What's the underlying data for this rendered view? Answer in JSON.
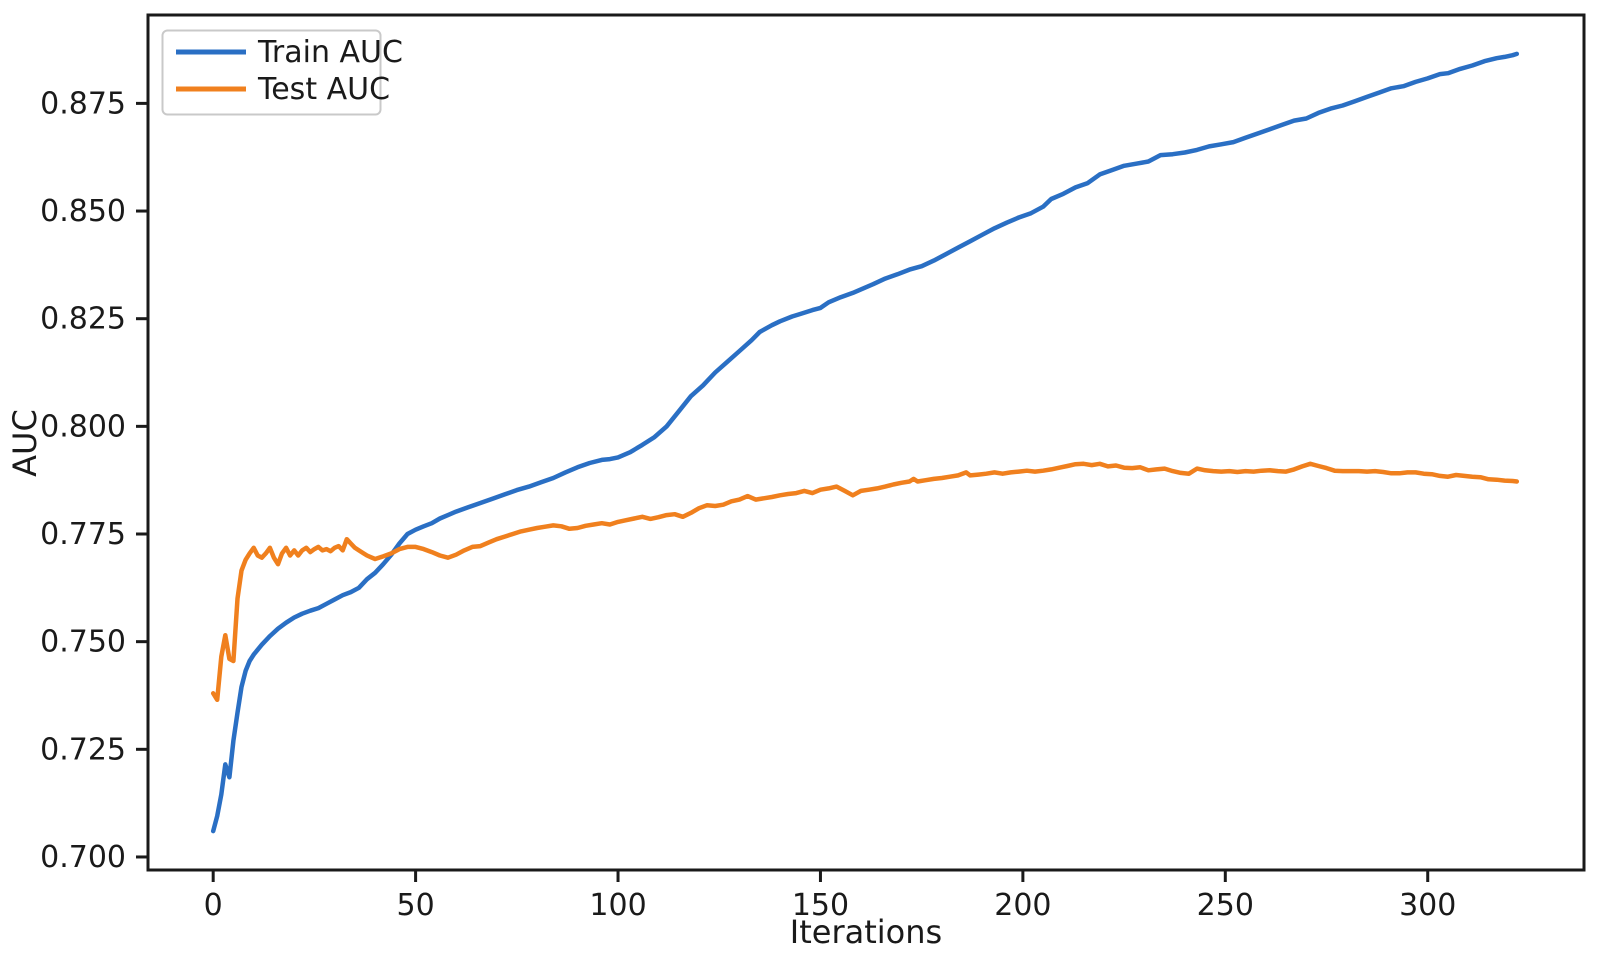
{
  "chart_data": {
    "type": "line",
    "title": "",
    "xlabel": "Iterations",
    "ylabel": "AUC",
    "grid": false,
    "background": "#ffffff",
    "axis_color": "#1a1a1a",
    "xlim": [
      -16.1,
      338.6
    ],
    "ylim": [
      0.696975,
      0.895525
    ],
    "x_ticks": [
      0,
      50,
      100,
      150,
      200,
      250,
      300
    ],
    "x_tick_labels": [
      "0",
      "50",
      "100",
      "150",
      "200",
      "250",
      "300"
    ],
    "y_ticks": [
      0.7,
      0.725,
      0.75,
      0.775,
      0.8,
      0.825,
      0.85,
      0.875
    ],
    "y_tick_labels": [
      "0.700",
      "0.725",
      "0.750",
      "0.775",
      "0.800",
      "0.825",
      "0.850",
      "0.875"
    ],
    "legend": {
      "position": "upper-left"
    },
    "series": [
      {
        "name": "Train AUC",
        "color": "#2a6fc4",
        "points": [
          [
            0,
            0.706
          ],
          [
            1,
            0.7095
          ],
          [
            2,
            0.7145
          ],
          [
            3,
            0.7215
          ],
          [
            4,
            0.7185
          ],
          [
            5,
            0.727
          ],
          [
            6,
            0.7335
          ],
          [
            7,
            0.7395
          ],
          [
            8,
            0.7432
          ],
          [
            9,
            0.7455
          ],
          [
            10,
            0.747
          ],
          [
            12,
            0.7493
          ],
          [
            14,
            0.7513
          ],
          [
            16,
            0.753
          ],
          [
            18,
            0.7544
          ],
          [
            20,
            0.7556
          ],
          [
            22,
            0.7565
          ],
          [
            24,
            0.7572
          ],
          [
            26,
            0.7578
          ],
          [
            28,
            0.7588
          ],
          [
            30,
            0.7598
          ],
          [
            32,
            0.7608
          ],
          [
            34,
            0.7615
          ],
          [
            36,
            0.7625
          ],
          [
            38,
            0.7645
          ],
          [
            40,
            0.766
          ],
          [
            42,
            0.768
          ],
          [
            44,
            0.7702
          ],
          [
            46,
            0.7728
          ],
          [
            48,
            0.775
          ],
          [
            50,
            0.776
          ],
          [
            52,
            0.7768
          ],
          [
            54,
            0.7775
          ],
          [
            56,
            0.7786
          ],
          [
            58,
            0.7794
          ],
          [
            60,
            0.7802
          ],
          [
            63,
            0.7812
          ],
          [
            66,
            0.7822
          ],
          [
            69,
            0.7832
          ],
          [
            72,
            0.7842
          ],
          [
            75,
            0.7852
          ],
          [
            78,
            0.786
          ],
          [
            81,
            0.787
          ],
          [
            84,
            0.788
          ],
          [
            87,
            0.7893
          ],
          [
            90,
            0.7905
          ],
          [
            93,
            0.7915
          ],
          [
            96,
            0.7922
          ],
          [
            98,
            0.7924
          ],
          [
            100,
            0.7928
          ],
          [
            103,
            0.794
          ],
          [
            106,
            0.7957
          ],
          [
            109,
            0.7975
          ],
          [
            112,
            0.8
          ],
          [
            115,
            0.8035
          ],
          [
            118,
            0.807
          ],
          [
            121,
            0.8095
          ],
          [
            124,
            0.8125
          ],
          [
            127,
            0.815
          ],
          [
            130,
            0.8175
          ],
          [
            133,
            0.82
          ],
          [
            135,
            0.8219
          ],
          [
            138,
            0.8235
          ],
          [
            140,
            0.8244
          ],
          [
            143,
            0.8255
          ],
          [
            145,
            0.8261
          ],
          [
            148,
            0.827
          ],
          [
            150,
            0.8275
          ],
          [
            152,
            0.8288
          ],
          [
            155,
            0.83
          ],
          [
            158,
            0.831
          ],
          [
            160,
            0.8318
          ],
          [
            163,
            0.833
          ],
          [
            166,
            0.8343
          ],
          [
            169,
            0.8353
          ],
          [
            172,
            0.8364
          ],
          [
            175,
            0.8372
          ],
          [
            178,
            0.8385
          ],
          [
            181,
            0.84
          ],
          [
            184,
            0.8415
          ],
          [
            187,
            0.843
          ],
          [
            190,
            0.8445
          ],
          [
            193,
            0.846
          ],
          [
            196,
            0.8473
          ],
          [
            199,
            0.8485
          ],
          [
            202,
            0.8495
          ],
          [
            205,
            0.851
          ],
          [
            207,
            0.8528
          ],
          [
            210,
            0.854
          ],
          [
            213,
            0.8555
          ],
          [
            216,
            0.8565
          ],
          [
            219,
            0.8585
          ],
          [
            222,
            0.8595
          ],
          [
            225,
            0.8605
          ],
          [
            228,
            0.861
          ],
          [
            231,
            0.8615
          ],
          [
            234,
            0.863
          ],
          [
            237,
            0.8632
          ],
          [
            240,
            0.8636
          ],
          [
            243,
            0.8642
          ],
          [
            246,
            0.865
          ],
          [
            249,
            0.8655
          ],
          [
            252,
            0.866
          ],
          [
            255,
            0.867
          ],
          [
            258,
            0.868
          ],
          [
            261,
            0.869
          ],
          [
            264,
            0.87
          ],
          [
            267,
            0.871
          ],
          [
            270,
            0.8715
          ],
          [
            273,
            0.8728
          ],
          [
            276,
            0.8738
          ],
          [
            279,
            0.8745
          ],
          [
            282,
            0.8755
          ],
          [
            285,
            0.8765
          ],
          [
            288,
            0.8775
          ],
          [
            291,
            0.8785
          ],
          [
            294,
            0.879
          ],
          [
            297,
            0.88
          ],
          [
            300,
            0.8808
          ],
          [
            303,
            0.8818
          ],
          [
            305,
            0.882
          ],
          [
            308,
            0.883
          ],
          [
            311,
            0.8838
          ],
          [
            314,
            0.8848
          ],
          [
            317,
            0.8855
          ],
          [
            319,
            0.8858
          ],
          [
            321,
            0.8862
          ],
          [
            322,
            0.8865
          ]
        ]
      },
      {
        "name": "Test AUC",
        "color": "#f0801e",
        "points": [
          [
            0,
            0.738
          ],
          [
            1,
            0.7365
          ],
          [
            2,
            0.7465
          ],
          [
            3,
            0.7515
          ],
          [
            4,
            0.746
          ],
          [
            5,
            0.7455
          ],
          [
            6,
            0.76
          ],
          [
            7,
            0.7665
          ],
          [
            8,
            0.769
          ],
          [
            9,
            0.7705
          ],
          [
            10,
            0.7718
          ],
          [
            11,
            0.77
          ],
          [
            12,
            0.7695
          ],
          [
            13,
            0.7705
          ],
          [
            14,
            0.7718
          ],
          [
            15,
            0.7695
          ],
          [
            16,
            0.768
          ],
          [
            17,
            0.7705
          ],
          [
            18,
            0.7718
          ],
          [
            19,
            0.77
          ],
          [
            20,
            0.7712
          ],
          [
            21,
            0.77
          ],
          [
            22,
            0.7712
          ],
          [
            23,
            0.7718
          ],
          [
            24,
            0.7708
          ],
          [
            25,
            0.7715
          ],
          [
            26,
            0.772
          ],
          [
            27,
            0.7712
          ],
          [
            28,
            0.7715
          ],
          [
            29,
            0.771
          ],
          [
            30,
            0.7718
          ],
          [
            31,
            0.7722
          ],
          [
            32,
            0.7712
          ],
          [
            33,
            0.7738
          ],
          [
            34,
            0.7728
          ],
          [
            35,
            0.7718
          ],
          [
            36,
            0.7712
          ],
          [
            37,
            0.7706
          ],
          [
            38,
            0.77
          ],
          [
            39,
            0.7696
          ],
          [
            40,
            0.7692
          ],
          [
            42,
            0.7698
          ],
          [
            44,
            0.7705
          ],
          [
            46,
            0.7715
          ],
          [
            48,
            0.772
          ],
          [
            50,
            0.772
          ],
          [
            52,
            0.7715
          ],
          [
            54,
            0.7708
          ],
          [
            56,
            0.77
          ],
          [
            58,
            0.7695
          ],
          [
            60,
            0.7702
          ],
          [
            62,
            0.7712
          ],
          [
            64,
            0.772
          ],
          [
            66,
            0.7722
          ],
          [
            68,
            0.773
          ],
          [
            70,
            0.7738
          ],
          [
            72,
            0.7744
          ],
          [
            74,
            0.775
          ],
          [
            76,
            0.7756
          ],
          [
            78,
            0.776
          ],
          [
            80,
            0.7764
          ],
          [
            82,
            0.7767
          ],
          [
            84,
            0.777
          ],
          [
            86,
            0.7768
          ],
          [
            88,
            0.7762
          ],
          [
            90,
            0.7764
          ],
          [
            92,
            0.7769
          ],
          [
            94,
            0.7772
          ],
          [
            96,
            0.7775
          ],
          [
            98,
            0.7772
          ],
          [
            100,
            0.7778
          ],
          [
            102,
            0.7782
          ],
          [
            104,
            0.7786
          ],
          [
            106,
            0.779
          ],
          [
            108,
            0.7785
          ],
          [
            110,
            0.7789
          ],
          [
            112,
            0.7794
          ],
          [
            114,
            0.7796
          ],
          [
            116,
            0.779
          ],
          [
            118,
            0.7799
          ],
          [
            120,
            0.781
          ],
          [
            122,
            0.7817
          ],
          [
            124,
            0.7815
          ],
          [
            126,
            0.7818
          ],
          [
            128,
            0.7826
          ],
          [
            130,
            0.783
          ],
          [
            132,
            0.7838
          ],
          [
            134,
            0.783
          ],
          [
            136,
            0.7833
          ],
          [
            138,
            0.7836
          ],
          [
            140,
            0.784
          ],
          [
            142,
            0.7843
          ],
          [
            144,
            0.7845
          ],
          [
            146,
            0.785
          ],
          [
            148,
            0.7845
          ],
          [
            150,
            0.7853
          ],
          [
            152,
            0.7856
          ],
          [
            154,
            0.786
          ],
          [
            156,
            0.785
          ],
          [
            158,
            0.784
          ],
          [
            160,
            0.785
          ],
          [
            162,
            0.7853
          ],
          [
            164,
            0.7856
          ],
          [
            166,
            0.786
          ],
          [
            168,
            0.7865
          ],
          [
            170,
            0.7869
          ],
          [
            172,
            0.7872
          ],
          [
            173,
            0.7878
          ],
          [
            174,
            0.7872
          ],
          [
            176,
            0.7875
          ],
          [
            178,
            0.7878
          ],
          [
            180,
            0.788
          ],
          [
            182,
            0.7883
          ],
          [
            184,
            0.7886
          ],
          [
            186,
            0.7893
          ],
          [
            187,
            0.7886
          ],
          [
            189,
            0.7888
          ],
          [
            191,
            0.789
          ],
          [
            193,
            0.7893
          ],
          [
            195,
            0.789
          ],
          [
            197,
            0.7893
          ],
          [
            199,
            0.7895
          ],
          [
            201,
            0.7897
          ],
          [
            203,
            0.7895
          ],
          [
            205,
            0.7897
          ],
          [
            207,
            0.79
          ],
          [
            209,
            0.7904
          ],
          [
            211,
            0.7908
          ],
          [
            213,
            0.7912
          ],
          [
            215,
            0.7913
          ],
          [
            217,
            0.791
          ],
          [
            219,
            0.7913
          ],
          [
            221,
            0.7907
          ],
          [
            223,
            0.7909
          ],
          [
            225,
            0.7904
          ],
          [
            227,
            0.7903
          ],
          [
            229,
            0.7905
          ],
          [
            231,
            0.7898
          ],
          [
            233,
            0.79
          ],
          [
            235,
            0.7902
          ],
          [
            237,
            0.7896
          ],
          [
            239,
            0.7892
          ],
          [
            241,
            0.789
          ],
          [
            243,
            0.7902
          ],
          [
            245,
            0.7898
          ],
          [
            247,
            0.7896
          ],
          [
            249,
            0.7895
          ],
          [
            251,
            0.7896
          ],
          [
            253,
            0.7894
          ],
          [
            255,
            0.7896
          ],
          [
            257,
            0.7895
          ],
          [
            259,
            0.7897
          ],
          [
            261,
            0.7898
          ],
          [
            263,
            0.7896
          ],
          [
            265,
            0.7895
          ],
          [
            267,
            0.79
          ],
          [
            269,
            0.7907
          ],
          [
            271,
            0.7913
          ],
          [
            273,
            0.7908
          ],
          [
            275,
            0.7903
          ],
          [
            277,
            0.7897
          ],
          [
            279,
            0.7896
          ],
          [
            281,
            0.7896
          ],
          [
            283,
            0.7896
          ],
          [
            285,
            0.7895
          ],
          [
            287,
            0.7896
          ],
          [
            289,
            0.7894
          ],
          [
            291,
            0.7891
          ],
          [
            293,
            0.7891
          ],
          [
            295,
            0.7893
          ],
          [
            297,
            0.7893
          ],
          [
            299,
            0.789
          ],
          [
            301,
            0.7889
          ],
          [
            303,
            0.7885
          ],
          [
            305,
            0.7883
          ],
          [
            307,
            0.7887
          ],
          [
            309,
            0.7885
          ],
          [
            311,
            0.7883
          ],
          [
            313,
            0.7882
          ],
          [
            315,
            0.7877
          ],
          [
            317,
            0.7876
          ],
          [
            319,
            0.7874
          ],
          [
            321,
            0.7873
          ],
          [
            322,
            0.7872
          ]
        ]
      }
    ]
  }
}
